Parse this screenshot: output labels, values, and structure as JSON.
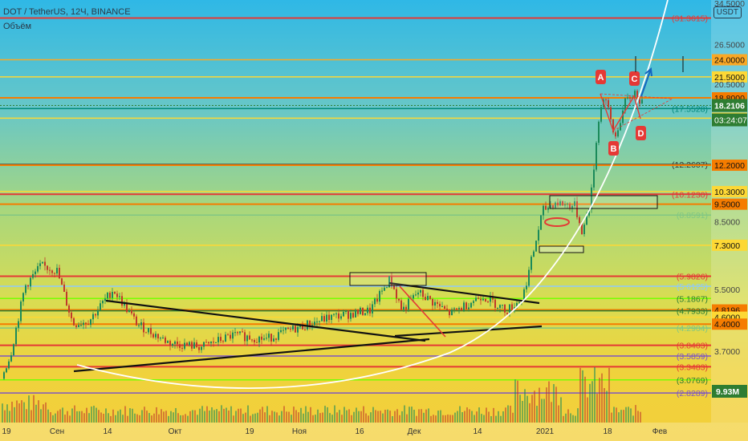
{
  "header": {
    "symbol": "DOT / TetherUS, 12Ч, BINANCE",
    "volume_label": "Объём",
    "currency": "USDT"
  },
  "chart_data": {
    "type": "candlestick",
    "title": "DOT / TetherUS, 12Ч, BINANCE",
    "y_scale": "log",
    "ylim": [
      2.62,
      34.5
    ],
    "x_tick_labels": [
      "19",
      "Сен",
      "14",
      "Окт",
      "19",
      "Ноя",
      "16",
      "Дек",
      "14",
      "2021",
      "18",
      "Фев"
    ],
    "horizontal_levels": [
      {
        "price": 34.5,
        "label": "34.5000",
        "color": "#8a8a8a",
        "shown_on_axis": true
      },
      {
        "price": 31.3615,
        "label": "(31.3615)",
        "color": "#e53935"
      },
      {
        "price": 26.5,
        "label": "26.5000",
        "color": "#8a8a8a",
        "shown_on_axis": true
      },
      {
        "price": 24.0,
        "label": "24.0000",
        "color": "#f9a825",
        "shown_on_axis": true
      },
      {
        "price": 21.5,
        "label": "21.5000",
        "color": "#fdd835",
        "shown_on_axis": true
      },
      {
        "price": 20.5,
        "label": "20.5000",
        "color": "#8a8a8a"
      },
      {
        "price": 18.8,
        "label": "18.8000",
        "color": "#f57c00",
        "shown_on_axis": true
      },
      {
        "price": 17.5528,
        "label": "(17.5528)",
        "color": "#00897b"
      },
      {
        "price": 16.5,
        "label": "16.5000",
        "color": "#fdd835",
        "shown_on_axis": true
      },
      {
        "price": 12.2607,
        "label": "(12.2607)",
        "color": "#333333"
      },
      {
        "price": 12.2,
        "label": "12.2000",
        "color": "#f57c00",
        "shown_on_axis": true
      },
      {
        "price": 10.3,
        "label": "10.3000",
        "color": "#fdd835",
        "shown_on_axis": true
      },
      {
        "price": 10.123,
        "label": "(10.1230)",
        "color": "#e53935"
      },
      {
        "price": 9.5,
        "label": "9.5000",
        "color": "#f57c00",
        "shown_on_axis": true
      },
      {
        "price": 8.8591,
        "label": "(8.8591)",
        "color": "#81c784"
      },
      {
        "price": 8.5,
        "label": "8.5000",
        "color": "#8a8a8a"
      },
      {
        "price": 7.3,
        "label": "7.3000",
        "color": "#fdd835",
        "shown_on_axis": true
      },
      {
        "price": 5.9826,
        "label": "(5.9826)",
        "color": "#e53935"
      },
      {
        "price": 5.6125,
        "label": "(5.6125)",
        "color": "#90caf9"
      },
      {
        "price": 5.5,
        "label": "5.5000",
        "color": "#8a8a8a"
      },
      {
        "price": 5.1867,
        "label": "(5.1867)",
        "color": "#76ff03"
      },
      {
        "price": 4.8196,
        "label": "4.8196",
        "color": "#f57c00",
        "shown_on_axis": true
      },
      {
        "price": 4.7933,
        "label": "(4.7933)",
        "color": "#2e7d32"
      },
      {
        "price": 4.6,
        "label": "4.6000",
        "color": "#fdd835",
        "shown_on_axis": true
      },
      {
        "price": 4.2904,
        "label": "(4.2904)",
        "color": "#81c784"
      },
      {
        "price": 4.4,
        "label": "4.4000",
        "color": "#f57c00",
        "shown_on_axis": true
      },
      {
        "price": 3.8403,
        "label": "(3.8403)",
        "color": "#e53935"
      },
      {
        "price": 3.7,
        "label": "3.7000",
        "color": "#8a8a8a"
      },
      {
        "price": 3.5859,
        "label": "(3.5859)",
        "color": "#7e57c2"
      },
      {
        "price": 3.3483,
        "label": "(3.3483)",
        "color": "#e53935"
      },
      {
        "price": 3.0769,
        "label": "(3.0769)",
        "color": "#76ff03"
      },
      {
        "price": 2.8289,
        "label": "(2.8289)",
        "color": "#7e57c2"
      }
    ],
    "current_price": {
      "label": "18.2106",
      "color": "#2e7d32"
    },
    "countdown": {
      "label": "03:24:07",
      "color": "#2e7d32"
    },
    "volume_tag": {
      "label": "9.93M",
      "color": "#2e7d32"
    },
    "pattern_points": [
      {
        "label": "A",
        "price": 19.3
      },
      {
        "label": "B",
        "price": 14.4
      },
      {
        "label": "C",
        "price": 19.5
      },
      {
        "label": "D",
        "price": 15.8
      }
    ],
    "colors": {
      "up": "#1b8a5a",
      "down": "#c0392b",
      "grid_line": "#111111",
      "arc": "#ffffff"
    }
  }
}
